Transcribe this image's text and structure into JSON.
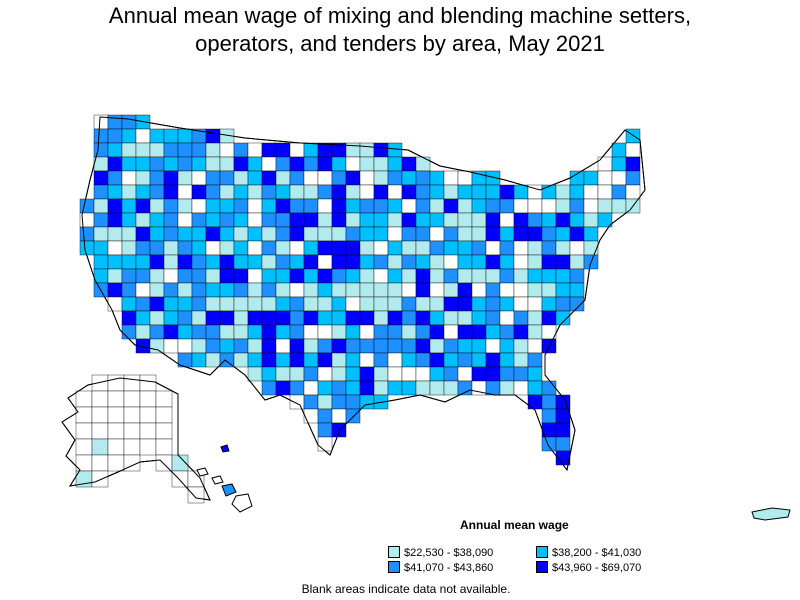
{
  "title": {
    "line1": "Annual mean wage of mixing and blending machine setters,",
    "line2": "operators, and tenders by area, May 2021"
  },
  "legend": {
    "title": "Annual mean wage",
    "items": [
      {
        "label": "$22,530 - $38,090",
        "color": "#b2ebed"
      },
      {
        "label": "$38,200 - $41,030",
        "color": "#00bfff"
      },
      {
        "label": "$41,070 - $43,860",
        "color": "#1e90ff"
      },
      {
        "label": "$43,960 - $69,070",
        "color": "#0000ff"
      }
    ]
  },
  "footnote": "Blank areas indicate data not available.",
  "map": {
    "regions": "U.S. states and metropolitan / nonmetropolitan areas",
    "blank_color": "#ffffff",
    "border_color": "#000000"
  }
}
